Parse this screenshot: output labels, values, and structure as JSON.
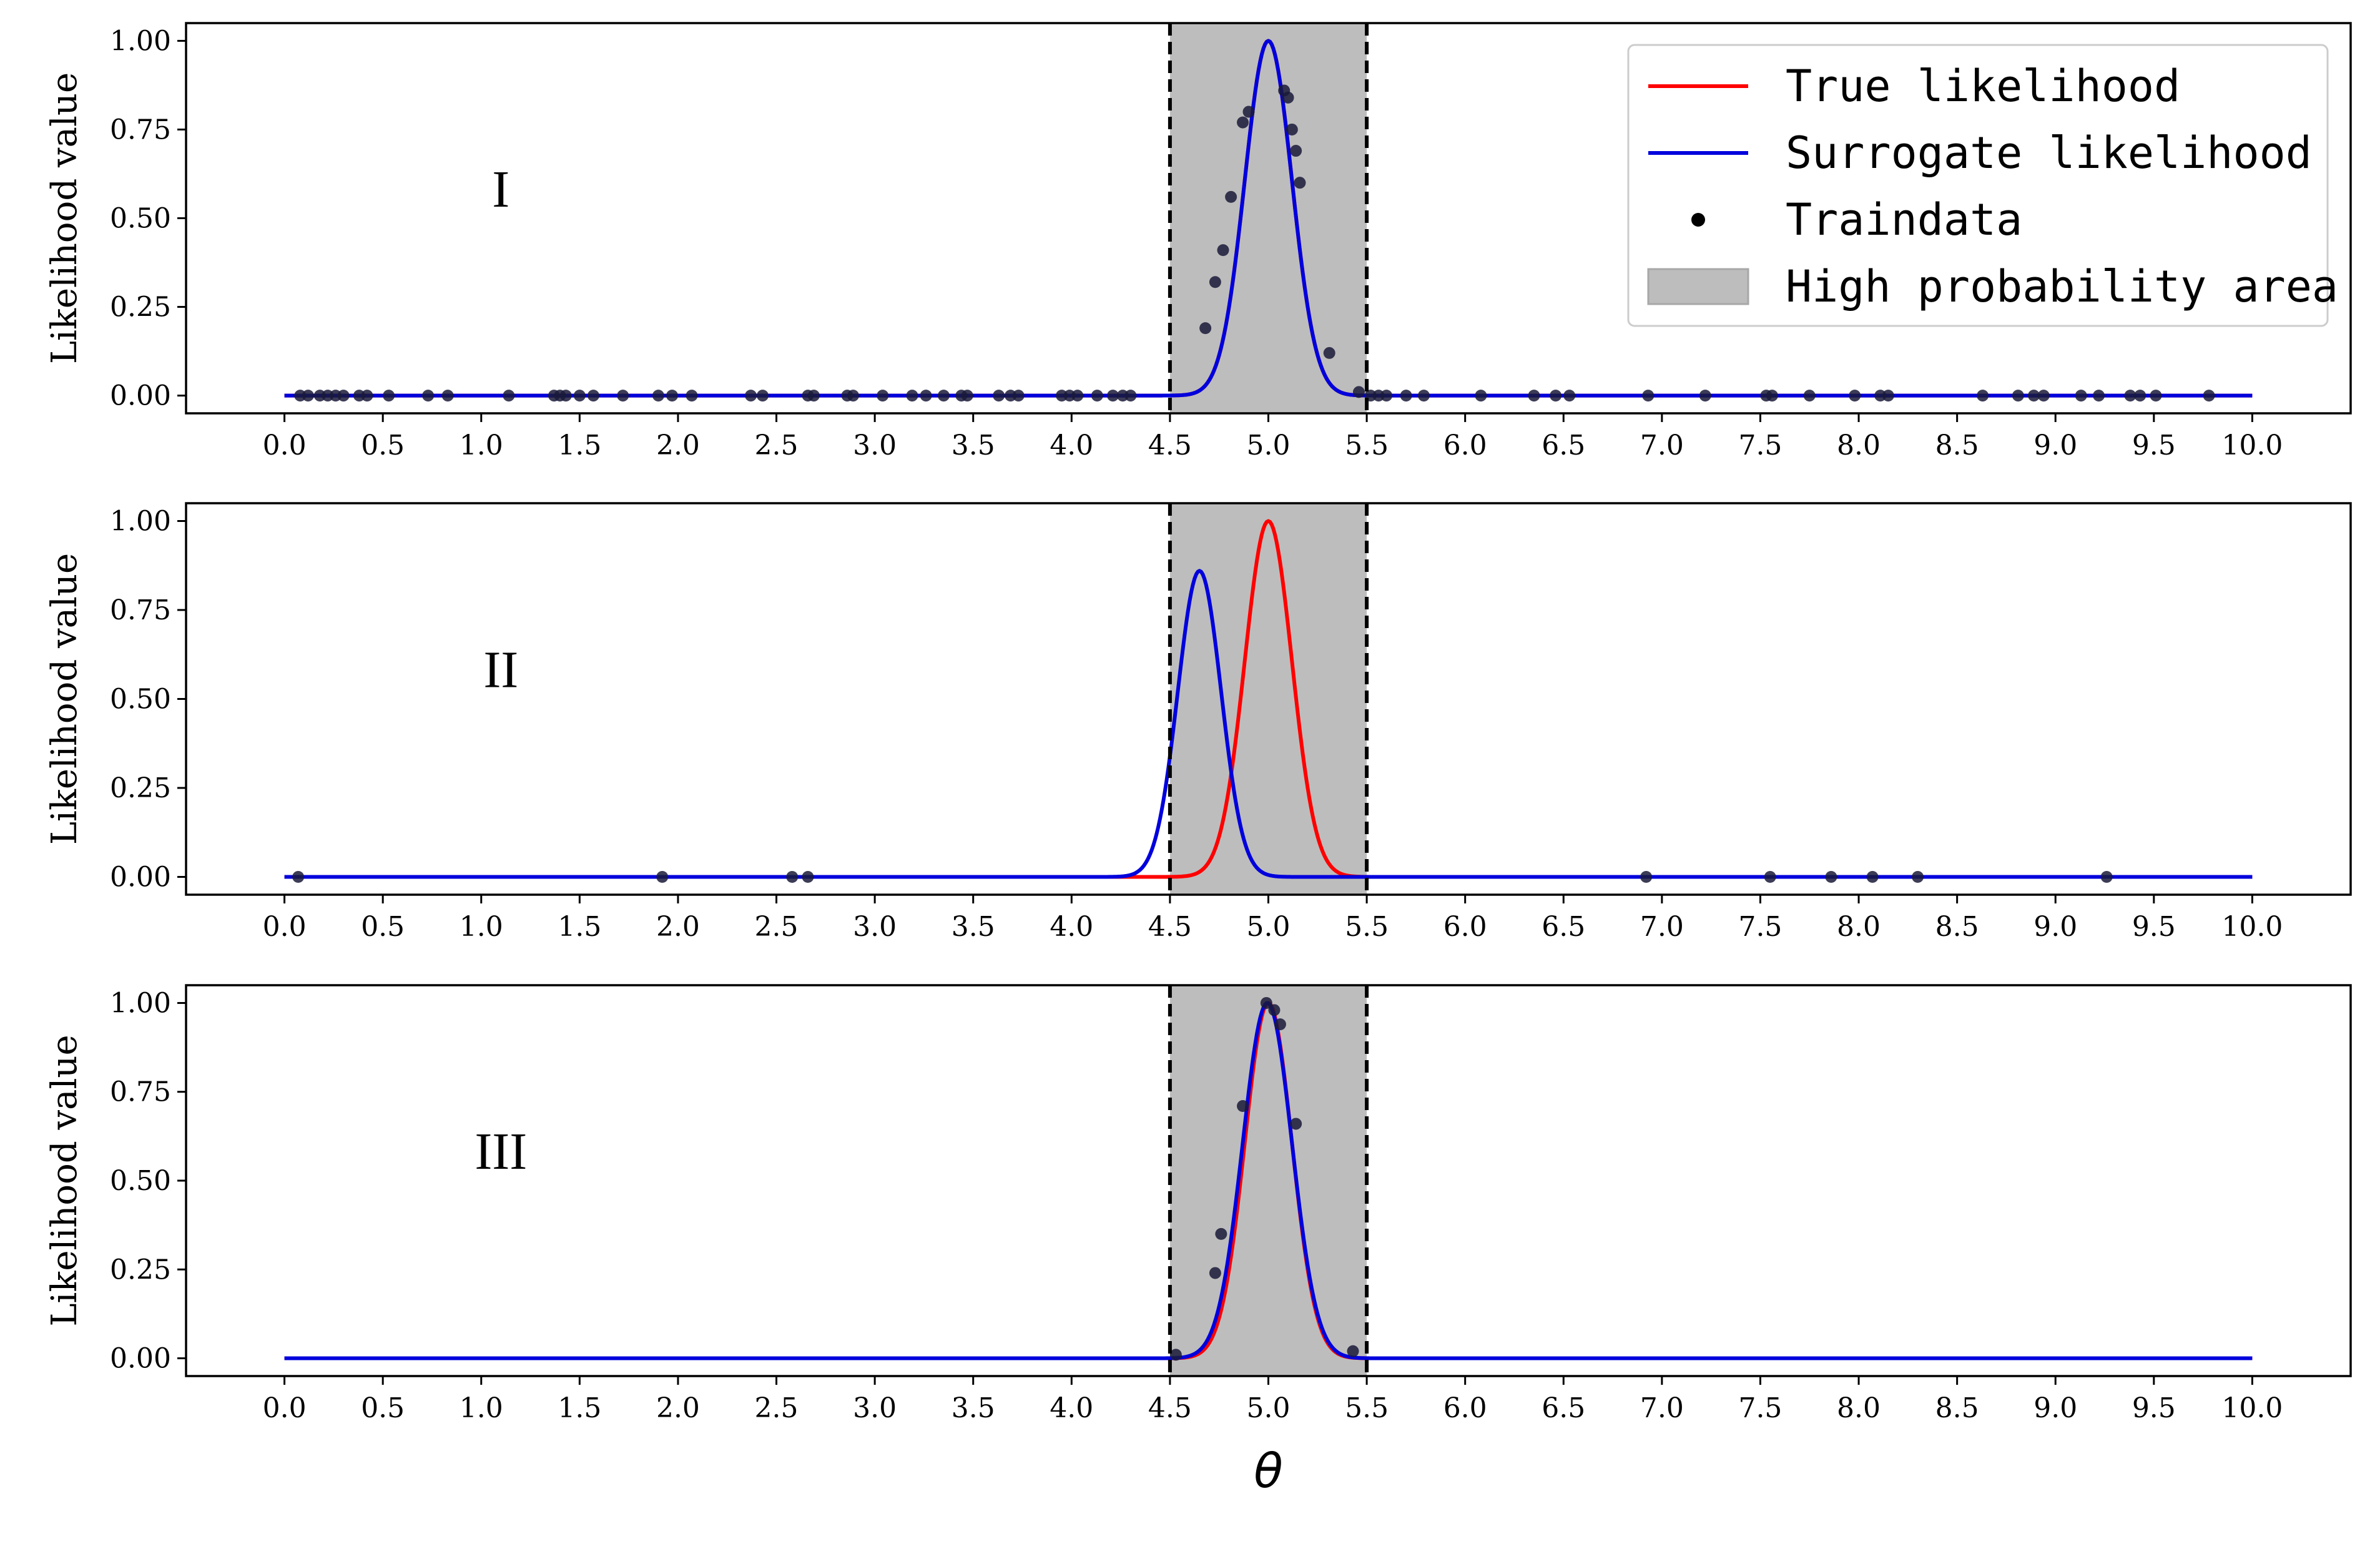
{
  "figure": {
    "xlabel": "θ",
    "ylabel": "Likelihood value"
  },
  "legend": {
    "placement": "top-right of first panel",
    "entries": [
      {
        "label": "True likelihood",
        "kind": "line",
        "color": "#ff0000"
      },
      {
        "label": "Surrogate likelihood",
        "kind": "line",
        "color": "#0000dd"
      },
      {
        "label": "Traindata",
        "kind": "marker",
        "color": "#000000"
      },
      {
        "label": "High probability area",
        "kind": "patch",
        "color": "#bdbdbd"
      }
    ]
  },
  "colors": {
    "true_line": "#ff0000",
    "surrogate_line": "#0000dd",
    "points": "#1a1a3a",
    "shade": "#bdbdbd",
    "boundary": "#000000"
  },
  "chart_data": [
    {
      "type": "line",
      "panel_label": "I",
      "xlabel": "",
      "ylabel": "Likelihood value",
      "xlim": [
        -0.5,
        10.5
      ],
      "ylim": [
        -0.05,
        1.05
      ],
      "xticks": [
        "0.0",
        "0.5",
        "1.0",
        "1.5",
        "2.0",
        "2.5",
        "3.0",
        "3.5",
        "4.0",
        "4.5",
        "5.0",
        "5.5",
        "6.0",
        "6.5",
        "7.0",
        "7.5",
        "8.0",
        "8.5",
        "9.0",
        "9.5",
        "10.0"
      ],
      "yticks": [
        "0.00",
        "0.25",
        "0.50",
        "0.75",
        "1.00"
      ],
      "high_probability_area": [
        4.5,
        5.5
      ],
      "series": [
        {
          "name": "True likelihood",
          "shape": "gaussian",
          "mu": 5.0,
          "sigma": 0.12,
          "amplitude": 1.0
        },
        {
          "name": "Surrogate likelihood",
          "shape": "gaussian",
          "mu": 5.0,
          "sigma": 0.12,
          "amplitude": 1.0
        }
      ],
      "points": {
        "name": "Traindata",
        "x": [
          0.08,
          0.12,
          0.18,
          0.22,
          0.26,
          0.3,
          0.38,
          0.42,
          0.53,
          0.73,
          0.83,
          1.14,
          1.37,
          1.4,
          1.43,
          1.5,
          1.57,
          1.72,
          1.9,
          1.97,
          2.07,
          2.37,
          2.43,
          2.66,
          2.69,
          2.86,
          2.89,
          3.04,
          3.19,
          3.26,
          3.35,
          3.44,
          3.47,
          3.63,
          3.69,
          3.73,
          3.95,
          3.99,
          4.03,
          4.13,
          4.21,
          4.26,
          4.3,
          4.68,
          4.73,
          4.77,
          4.81,
          4.87,
          4.9,
          5.08,
          5.1,
          5.12,
          5.14,
          5.16,
          5.31,
          5.46,
          5.52,
          5.56,
          5.6,
          5.7,
          5.79,
          6.08,
          6.35,
          6.46,
          6.53,
          6.93,
          7.22,
          7.53,
          7.56,
          7.75,
          7.98,
          8.11,
          8.15,
          8.63,
          8.81,
          8.89,
          8.94,
          9.13,
          9.22,
          9.38,
          9.43,
          9.51,
          9.78
        ],
        "y": [
          0,
          0,
          0,
          0,
          0,
          0,
          0,
          0,
          0,
          0,
          0,
          0,
          0,
          0,
          0,
          0,
          0,
          0,
          0,
          0,
          0,
          0,
          0,
          0,
          0,
          0,
          0,
          0,
          0,
          0,
          0,
          0,
          0,
          0,
          0,
          0,
          0,
          0,
          0,
          0,
          0,
          0,
          0,
          0.19,
          0.32,
          0.41,
          0.56,
          0.77,
          0.8,
          0.86,
          0.84,
          0.75,
          0.69,
          0.6,
          0.12,
          0.01,
          0,
          0,
          0,
          0,
          0,
          0,
          0,
          0,
          0,
          0,
          0,
          0,
          0,
          0,
          0,
          0,
          0,
          0,
          0,
          0,
          0,
          0,
          0,
          0,
          0,
          0,
          0
        ]
      }
    },
    {
      "type": "line",
      "panel_label": "II",
      "xlabel": "",
      "ylabel": "Likelihood value",
      "xlim": [
        -0.5,
        10.5
      ],
      "ylim": [
        -0.05,
        1.05
      ],
      "xticks": [
        "0.0",
        "0.5",
        "1.0",
        "1.5",
        "2.0",
        "2.5",
        "3.0",
        "3.5",
        "4.0",
        "4.5",
        "5.0",
        "5.5",
        "6.0",
        "6.5",
        "7.0",
        "7.5",
        "8.0",
        "8.5",
        "9.0",
        "9.5",
        "10.0"
      ],
      "yticks": [
        "0.00",
        "0.25",
        "0.50",
        "0.75",
        "1.00"
      ],
      "high_probability_area": [
        4.5,
        5.5
      ],
      "series": [
        {
          "name": "True likelihood",
          "shape": "gaussian",
          "mu": 5.0,
          "sigma": 0.12,
          "amplitude": 1.0
        },
        {
          "name": "Surrogate likelihood",
          "shape": "gaussian",
          "mu": 4.65,
          "sigma": 0.11,
          "amplitude": 0.86
        }
      ],
      "points": {
        "name": "Traindata",
        "x": [
          0.07,
          1.92,
          2.58,
          2.66,
          6.92,
          7.55,
          7.86,
          8.07,
          8.3,
          9.26
        ],
        "y": [
          0,
          0,
          0,
          0,
          0,
          0,
          0,
          0,
          0,
          0
        ]
      }
    },
    {
      "type": "line",
      "panel_label": "III",
      "xlabel": "θ",
      "ylabel": "Likelihood value",
      "xlim": [
        -0.5,
        10.5
      ],
      "ylim": [
        -0.05,
        1.05
      ],
      "xticks": [
        "0.0",
        "0.5",
        "1.0",
        "1.5",
        "2.0",
        "2.5",
        "3.0",
        "3.5",
        "4.0",
        "4.5",
        "5.0",
        "5.5",
        "6.0",
        "6.5",
        "7.0",
        "7.5",
        "8.0",
        "8.5",
        "9.0",
        "9.5",
        "10.0"
      ],
      "yticks": [
        "0.00",
        "0.25",
        "0.50",
        "0.75",
        "1.00"
      ],
      "high_probability_area": [
        4.5,
        5.5
      ],
      "series": [
        {
          "name": "True likelihood",
          "shape": "gaussian",
          "mu": 5.0,
          "sigma": 0.12,
          "amplitude": 1.0
        },
        {
          "name": "Surrogate likelihood",
          "shape": "gaussian",
          "mu": 4.995,
          "sigma": 0.125,
          "amplitude": 1.0
        }
      ],
      "points": {
        "name": "Traindata",
        "x": [
          4.53,
          4.73,
          4.76,
          4.87,
          4.99,
          5.03,
          5.06,
          5.14,
          5.43
        ],
        "y": [
          0.01,
          0.24,
          0.35,
          0.71,
          1.0,
          0.98,
          0.94,
          0.66,
          0.02
        ]
      }
    }
  ]
}
